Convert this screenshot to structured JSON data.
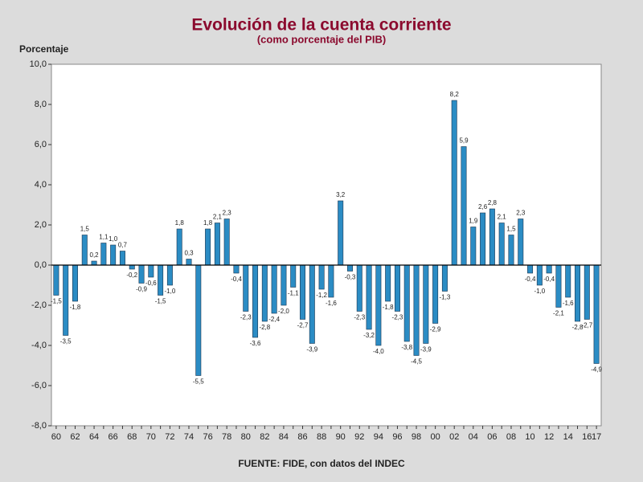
{
  "chart_data": {
    "type": "bar",
    "title": "Evolución de la cuenta corriente",
    "subtitle": "(como porcentaje del PIB)",
    "y_label": "Porcentaje",
    "source": "FUENTE: FIDE, con datos del INDEC",
    "color": "#2b8cc4",
    "categories": [
      "60",
      null,
      "62",
      null,
      "64",
      null,
      "66",
      null,
      "68",
      null,
      "70",
      null,
      "72",
      null,
      "74",
      null,
      "76",
      null,
      "78",
      null,
      "80",
      null,
      "82",
      null,
      "84",
      null,
      "86",
      null,
      "88",
      null,
      "90",
      null,
      "92",
      null,
      "94",
      null,
      "96",
      null,
      "98",
      null,
      "00",
      null,
      "02",
      null,
      "04",
      null,
      "06",
      null,
      "08",
      null,
      "10",
      null,
      "12",
      null,
      "14",
      null,
      "16",
      "17"
    ],
    "values": [
      -1.5,
      -3.5,
      -1.8,
      1.5,
      0.2,
      1.1,
      1.0,
      0.7,
      -0.2,
      -0.9,
      -0.6,
      -1.5,
      -1.0,
      1.8,
      0.3,
      -5.5,
      1.8,
      2.1,
      2.3,
      -0.4,
      -2.3,
      -3.6,
      -2.8,
      -2.4,
      -2.0,
      -1.1,
      -2.7,
      -3.9,
      -1.2,
      -1.6,
      3.2,
      -0.3,
      -2.3,
      -3.2,
      -4.0,
      -1.8,
      -2.3,
      -3.8,
      -4.5,
      -3.9,
      -2.9,
      -1.3,
      8.2,
      5.9,
      1.9,
      2.6,
      2.8,
      2.1,
      1.5,
      2.3,
      -0.4,
      -1.0,
      -0.4,
      -2.1,
      -1.6,
      -2.8,
      -2.7,
      -4.9
    ],
    "value_labels": [
      "-1,5",
      "-3,5",
      "-1,8",
      "1,5",
      "0,2",
      "1,1",
      "1,0",
      "0,7",
      "-0,2",
      "-0,9",
      "-0,6",
      "-1,5",
      "-1,0",
      "1,8",
      "0,3",
      "-5,5",
      "1,8",
      "2,1",
      "2,3",
      "-0,4",
      "-2,3",
      "-3,6",
      "-2,8",
      "-2,4",
      "-2,0",
      "-1,1",
      "-2,7",
      "-3,9",
      "-1,2",
      "-1,6",
      "3,2",
      "-0,3",
      "-2,3",
      "-3,2",
      "-4,0",
      "-1,8",
      "-2,3",
      "-3,8",
      "-4,5",
      "-3,9",
      "-2,9",
      "-1,3",
      "8,2",
      "5,9",
      "1,9",
      "2,6",
      "2,8",
      "2,1",
      "1,5",
      "2,3",
      "-0,4",
      "-1,0",
      "-0,4",
      "-2,1",
      "-1,6",
      "-2,8",
      "-2,7",
      "-4,9"
    ],
    "ylim": [
      -8,
      10
    ],
    "yticks": [
      {
        "value": -8,
        "label": "-8,0"
      },
      {
        "value": -6,
        "label": "-6,0"
      },
      {
        "value": -4,
        "label": "-4,0"
      },
      {
        "value": -2,
        "label": "-2,0"
      },
      {
        "value": 0,
        "label": "0,0"
      },
      {
        "value": 2,
        "label": "2,0"
      },
      {
        "value": 4,
        "label": "4,0"
      },
      {
        "value": 6,
        "label": "6,0"
      },
      {
        "value": 8,
        "label": "8,0"
      },
      {
        "value": 10,
        "label": "10,0"
      }
    ]
  }
}
